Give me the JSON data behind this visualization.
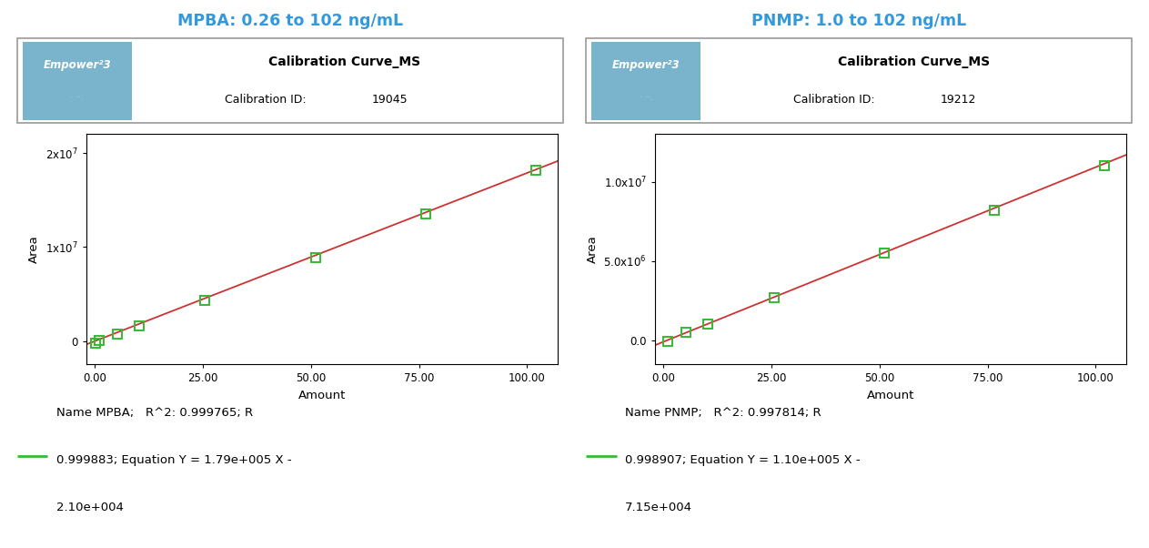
{
  "panel1": {
    "title": "MPBA: 0.26 to 102 ng/mL",
    "title_color": "#3399dd",
    "cal_title": "Calibration Curve_MS",
    "cal_id_label": "Calibration ID:",
    "cal_id_value": "19045",
    "xlabel": "Amount",
    "ylabel": "Area",
    "x_data": [
      0.26,
      1.02,
      5.12,
      10.2,
      25.5,
      51.0,
      76.5,
      102.0
    ],
    "y_data": [
      -210000,
      50000,
      700000,
      1600000,
      4350000,
      8900000,
      13500000,
      18200000
    ],
    "slope": 179000,
    "intercept": -21000,
    "xticks": [
      0.0,
      25.0,
      50.0,
      75.0,
      100.0
    ],
    "xtick_labels": [
      "0.00",
      "25.00",
      "50.00",
      "75.00",
      "100.00"
    ],
    "yticks": [
      0,
      10000000,
      20000000
    ],
    "ytick_labels": [
      "0",
      "1x10$^7$",
      "2x10$^7$"
    ],
    "ylim": [
      -2500000,
      22000000
    ],
    "xlim": [
      -2,
      107
    ],
    "leg_line1": "Name MPBA;   R^2: 0.999765; R",
    "leg_line2": "0.999883; Equation Y = 1.79e+005 X -",
    "leg_line3": "2.10e+004",
    "marker_color": "#33bb33",
    "line_color": "#cc3333"
  },
  "panel2": {
    "title": "PNMP: 1.0 to 102 ng/mL",
    "title_color": "#3399dd",
    "cal_title": "Calibration Curve_MS",
    "cal_id_label": "Calibration ID:",
    "cal_id_value": "19212",
    "xlabel": "Amount",
    "ylabel": "Area",
    "x_data": [
      1.0,
      5.12,
      10.2,
      25.5,
      51.0,
      76.5,
      102.0
    ],
    "y_data": [
      -71500,
      500000,
      1050000,
      2700000,
      5500000,
      8200000,
      11000000
    ],
    "slope": 110000,
    "intercept": -71500,
    "xticks": [
      0.0,
      25.0,
      50.0,
      75.0,
      100.0
    ],
    "xtick_labels": [
      "0.00",
      "25.00",
      "50.00",
      "75.00",
      "100.00"
    ],
    "yticks": [
      0,
      5000000,
      10000000
    ],
    "ytick_labels": [
      "0.0",
      "5.0x10$^6$",
      "1.0x10$^7$"
    ],
    "ylim": [
      -1500000,
      13000000
    ],
    "xlim": [
      -2,
      107
    ],
    "leg_line1": "Name PNMP;   R^2: 0.997814; R",
    "leg_line2": "0.998907; Equation Y = 1.10e+005 X -",
    "leg_line3": "7.15e+004",
    "marker_color": "#33bb33",
    "line_color": "#cc3333"
  },
  "empower_bg": "#7ab4cc",
  "box_border": "#999999",
  "background_color": "#ffffff",
  "plot_bg": "#ffffff"
}
